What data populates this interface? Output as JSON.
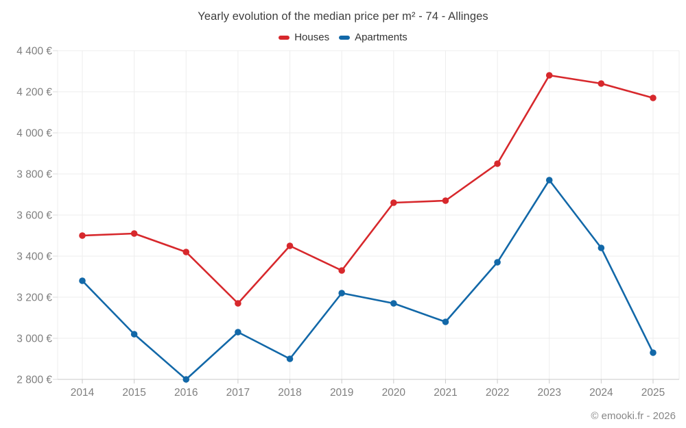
{
  "chart_data": {
    "type": "line",
    "title": "Yearly evolution of the median price per m² - 74 - Allinges",
    "categories": [
      "2014",
      "2015",
      "2016",
      "2017",
      "2018",
      "2019",
      "2020",
      "2021",
      "2022",
      "2023",
      "2024",
      "2025"
    ],
    "series": [
      {
        "name": "Houses",
        "color": "#d7282c",
        "values": [
          3500,
          3510,
          3420,
          3170,
          3450,
          3330,
          3660,
          3670,
          3850,
          4280,
          4240,
          4170
        ]
      },
      {
        "name": "Apartments",
        "color": "#1268a8",
        "values": [
          3280,
          3020,
          2800,
          3030,
          2900,
          3220,
          3170,
          3080,
          3370,
          3770,
          3440,
          2930
        ]
      }
    ],
    "xlabel": "",
    "ylabel": "",
    "ylim": [
      2800,
      4400
    ],
    "ytick_step": 200,
    "yticks": [
      {
        "value": 2800,
        "label": "2 800 €"
      },
      {
        "value": 3000,
        "label": "3 000 €"
      },
      {
        "value": 3200,
        "label": "3 200 €"
      },
      {
        "value": 3400,
        "label": "3 400 €"
      },
      {
        "value": 3600,
        "label": "3 600 €"
      },
      {
        "value": 3800,
        "label": "3 800 €"
      },
      {
        "value": 4000,
        "label": "4 000 €"
      },
      {
        "value": 4200,
        "label": "4 200 €"
      },
      {
        "value": 4400,
        "label": "4 400 €"
      }
    ],
    "grid": true,
    "legend_position": "top"
  },
  "theme": {
    "background": "#ffffff",
    "grid_color": "#ededed",
    "axis_color": "#c9c9c9",
    "ytick_color": "#dcdcdc",
    "axis_label_color": "#7f7f7f",
    "title_color": "#3d3d3d",
    "legend_text_color": "#333333"
  },
  "footer": {
    "copyright": "© emooki.fr - 2026"
  }
}
